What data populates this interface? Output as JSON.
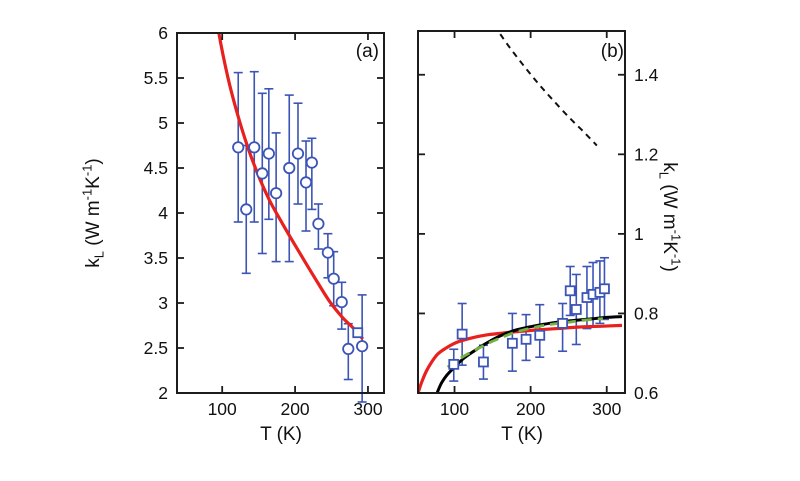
{
  "figure": {
    "background": "#ffffff",
    "axis_color": "#1c1c1c",
    "text_color": "#111111"
  },
  "chart_data": [
    {
      "id": "a",
      "type": "scatter",
      "panel_label": "(a)",
      "xlabel": "T (K)",
      "ylabel": "kL (W m⁻¹K⁻¹)",
      "ylabel_parts": {
        "base": "k",
        "sub": "L",
        "u1": " (W m",
        "e1": "-1",
        "u2": "K",
        "e2": "-1",
        "u3": ")"
      },
      "xlim": [
        38,
        322
      ],
      "ylim": [
        2,
        6
      ],
      "xticks": [
        100,
        200,
        300
      ],
      "xtick_labels": [
        "100",
        "200",
        "300"
      ],
      "yticks": [
        2,
        2.5,
        3,
        3.5,
        4,
        4.5,
        5,
        5.5,
        6
      ],
      "ytick_labels": [
        "2",
        "2.5",
        "3",
        "3.5",
        "4",
        "4.5",
        "5",
        "5.5",
        "6"
      ],
      "ytick_side": "left",
      "grid": false,
      "legend": null,
      "colors": {
        "data": "#3B54B6",
        "axis": "#1c1c1c"
      },
      "series": [
        {
          "name": "measured-kL-circles",
          "marker": "circle",
          "color": "#3B54B6",
          "points": [
            [
              122,
              4.73,
              3.9,
              5.56
            ],
            [
              133,
              4.04,
              3.33,
              4.75
            ],
            [
              144,
              4.73,
              3.9,
              5.57
            ],
            [
              155,
              4.44,
              3.55,
              5.33
            ],
            [
              164,
              4.66,
              3.93,
              5.38
            ],
            [
              174,
              4.22,
              3.46,
              4.89
            ],
            [
              192,
              4.5,
              3.46,
              5.31
            ],
            [
              204,
              4.66,
              4.1,
              5.22
            ],
            [
              215,
              4.34,
              3.8,
              4.8
            ],
            [
              223,
              4.56,
              4.04,
              4.83
            ],
            [
              232,
              3.88,
              3.6,
              4.1
            ],
            [
              245,
              3.56,
              3.28,
              3.77
            ],
            [
              253,
              3.27,
              2.97,
              3.57
            ],
            [
              264,
              3.01,
              2.71,
              3.23
            ],
            [
              273,
              2.49,
              2.15,
              2.77
            ],
            [
              292,
              2.52,
              1.9,
              3.09
            ]
          ]
        },
        {
          "name": "reference-square-point",
          "marker": "square",
          "color": "#3B54B6",
          "points": [
            [
              286,
              2.67,
              null,
              null
            ]
          ]
        }
      ],
      "curves": [
        {
          "name": "model-fit-red",
          "color": "#E8201E",
          "width": 3.2,
          "dash": null,
          "points": [
            [
              89,
              6.4
            ],
            [
              95,
              6.02
            ],
            [
              108,
              5.5
            ],
            [
              122,
              5.07
            ],
            [
              136,
              4.71
            ],
            [
              150,
              4.41
            ],
            [
              165,
              4.14
            ],
            [
              180,
              3.92
            ],
            [
              195,
              3.71
            ],
            [
              212,
              3.48
            ],
            [
              230,
              3.24
            ],
            [
              248,
              3.01
            ],
            [
              265,
              2.84
            ],
            [
              280,
              2.72
            ],
            [
              293,
              2.6
            ]
          ]
        }
      ]
    },
    {
      "id": "b",
      "type": "scatter",
      "panel_label": "(b)",
      "xlabel": "T (K)",
      "ylabel": "kL (W m⁻¹K⁻¹)",
      "ylabel_parts": {
        "base": "k",
        "sub": "L",
        "u1": " (W m",
        "e1": "-1",
        "u2": "K",
        "e2": "-1",
        "u3": ")"
      },
      "xlim": [
        52,
        324
      ],
      "ylim": [
        0.6,
        1.51
      ],
      "xticks": [
        100,
        200,
        300
      ],
      "xtick_labels": [
        "100",
        "200",
        "300"
      ],
      "yticks": [
        0.6,
        0.8,
        1.0,
        1.2,
        1.4
      ],
      "ytick_labels": [
        "0.6",
        "0.8",
        "1",
        "1.2",
        "1.4"
      ],
      "ytick_side": "right",
      "grid": false,
      "legend": null,
      "colors": {
        "data": "#3B54B6",
        "axis": "#1c1c1c"
      },
      "series": [
        {
          "name": "measured-kL-squares",
          "marker": "square",
          "color": "#3B54B6",
          "points": [
            [
              99,
              0.672,
              0.63,
              0.71
            ],
            [
              110,
              0.748,
              0.67,
              0.825
            ],
            [
              138,
              0.678,
              0.635,
              0.72
            ],
            [
              176,
              0.725,
              0.655,
              0.8
            ],
            [
              194,
              0.735,
              0.682,
              0.797
            ],
            [
              212,
              0.745,
              0.69,
              0.822
            ],
            [
              242,
              0.775,
              0.705,
              0.825
            ],
            [
              252,
              0.857,
              0.795,
              0.918
            ],
            [
              260,
              0.81,
              0.722,
              0.898
            ],
            [
              274,
              0.84,
              0.762,
              0.918
            ],
            [
              282,
              0.848,
              0.768,
              0.928
            ],
            [
              291,
              0.853,
              0.775,
              0.932
            ],
            [
              297,
              0.862,
              0.785,
              0.94
            ]
          ]
        }
      ],
      "curves": [
        {
          "name": "upper-model-black-dashed",
          "color": "#111111",
          "width": 2,
          "dash": "6 5",
          "points": [
            [
              152,
              1.525
            ],
            [
              170,
              1.475
            ],
            [
              190,
              1.425
            ],
            [
              210,
              1.378
            ],
            [
              230,
              1.335
            ],
            [
              252,
              1.29
            ],
            [
              270,
              1.256
            ],
            [
              287,
              1.222
            ]
          ]
        },
        {
          "name": "model-red",
          "color": "#E8201E",
          "width": 3.2,
          "dash": null,
          "points": [
            [
              52,
              0.6
            ],
            [
              57,
              0.628
            ],
            [
              63,
              0.655
            ],
            [
              70,
              0.678
            ],
            [
              78,
              0.698
            ],
            [
              88,
              0.712
            ],
            [
              100,
              0.725
            ],
            [
              112,
              0.733
            ],
            [
              126,
              0.74
            ],
            [
              142,
              0.746
            ],
            [
              160,
              0.75
            ],
            [
              180,
              0.754
            ],
            [
              205,
              0.758
            ],
            [
              235,
              0.762
            ],
            [
              265,
              0.766
            ],
            [
              295,
              0.768
            ],
            [
              320,
              0.77
            ]
          ]
        },
        {
          "name": "model-black",
          "color": "#000000",
          "width": 3,
          "dash": null,
          "points": [
            [
              74,
              0.585
            ],
            [
              82,
              0.622
            ],
            [
              90,
              0.645
            ],
            [
              100,
              0.665
            ],
            [
              112,
              0.687
            ],
            [
              126,
              0.706
            ],
            [
              140,
              0.723
            ],
            [
              155,
              0.739
            ],
            [
              168,
              0.75
            ],
            [
              182,
              0.759
            ],
            [
              198,
              0.766
            ],
            [
              215,
              0.772
            ],
            [
              235,
              0.778
            ],
            [
              255,
              0.782
            ],
            [
              278,
              0.786
            ],
            [
              300,
              0.79
            ],
            [
              320,
              0.792
            ]
          ]
        },
        {
          "name": "model-green-dashed",
          "color": "#74B043",
          "width": 2.8,
          "dash": "10 6",
          "points": [
            [
              91,
              0.665
            ],
            [
              105,
              0.684
            ],
            [
              120,
              0.701
            ],
            [
              135,
              0.716
            ],
            [
              150,
              0.73
            ],
            [
              165,
              0.742
            ],
            [
              180,
              0.753
            ],
            [
              198,
              0.762
            ],
            [
              215,
              0.769
            ],
            [
              232,
              0.774
            ],
            [
              250,
              0.778
            ],
            [
              270,
              0.783
            ],
            [
              295,
              0.787
            ]
          ]
        }
      ]
    }
  ]
}
